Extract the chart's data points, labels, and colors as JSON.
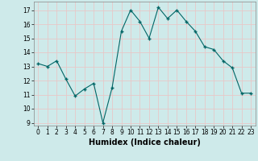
{
  "x": [
    0,
    1,
    2,
    3,
    4,
    5,
    6,
    7,
    8,
    9,
    10,
    11,
    12,
    13,
    14,
    15,
    16,
    17,
    18,
    19,
    20,
    21,
    22,
    23
  ],
  "y": [
    13.2,
    13.0,
    13.4,
    12.1,
    10.9,
    11.4,
    11.8,
    9.0,
    11.5,
    15.5,
    17.0,
    16.2,
    15.0,
    17.2,
    16.4,
    17.0,
    16.2,
    15.5,
    14.4,
    14.2,
    13.4,
    12.9,
    11.1,
    11.1
  ],
  "line_color": "#006666",
  "marker": "+",
  "marker_size": 3,
  "xlim": [
    -0.5,
    23.5
  ],
  "ylim": [
    8.8,
    17.6
  ],
  "yticks": [
    9,
    10,
    11,
    12,
    13,
    14,
    15,
    16,
    17
  ],
  "xticks": [
    0,
    1,
    2,
    3,
    4,
    5,
    6,
    7,
    8,
    9,
    10,
    11,
    12,
    13,
    14,
    15,
    16,
    17,
    18,
    19,
    20,
    21,
    22,
    23
  ],
  "xlabel": "Humidex (Indice chaleur)",
  "background_color": "#ceeaea",
  "grid_color": "#e8c8c8",
  "tick_fontsize": 5.5,
  "xlabel_fontsize": 7
}
